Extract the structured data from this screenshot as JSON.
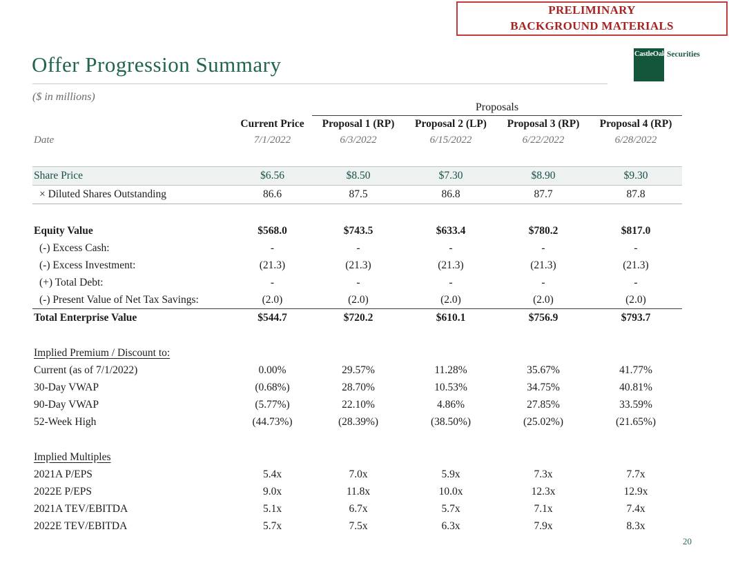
{
  "page": {
    "stamp_line1": "PRELIMINARY",
    "stamp_line2": "BACKGROUND MATERIALS",
    "logo_name": "CastleOak",
    "logo_suffix": "Securities",
    "title": "Offer Progression Summary",
    "subtitle": "($ in millions)",
    "page_number": "20"
  },
  "colors": {
    "title_green": "#216451",
    "logo_green": "#14563b",
    "stamp_red": "#a82222",
    "stamp_border_red": "#c23b3b",
    "share_price_teal": "#174f4a",
    "highlight_band": "#edf1ef",
    "date_gray": "#6f6f6f"
  },
  "table": {
    "group_header": "Proposals",
    "date_label": "Date",
    "columns": [
      "Current Price",
      "Proposal 1 (RP)",
      "Proposal 2 (LP)",
      "Proposal 3 (RP)",
      "Proposal 4 (RP)"
    ],
    "dates": [
      "7/1/2022",
      "6/3/2022",
      "6/15/2022",
      "6/22/2022",
      "6/28/2022"
    ],
    "sections": [
      {
        "rows": [
          {
            "label": "Share Price",
            "style": "highlight",
            "values": [
              "$6.56",
              "$8.50",
              "$7.30",
              "$8.90",
              "$9.30"
            ]
          },
          {
            "label": "× Diluted Shares Outstanding",
            "style": "subline",
            "indent": true,
            "values": [
              "86.6",
              "87.5",
              "86.8",
              "87.7",
              "87.8"
            ]
          }
        ]
      },
      {
        "rows": [
          {
            "label": "Equity Value",
            "style": "bold",
            "values": [
              "$568.0",
              "$743.5",
              "$633.4",
              "$780.2",
              "$817.0"
            ]
          },
          {
            "label": "(-) Excess Cash:",
            "indent": true,
            "values": [
              "-",
              "-",
              "-",
              "-",
              "-"
            ]
          },
          {
            "label": "(-) Excess Investment:",
            "indent": true,
            "values": [
              "(21.3)",
              "(21.3)",
              "(21.3)",
              "(21.3)",
              "(21.3)"
            ]
          },
          {
            "label": "(+) Total Debt:",
            "indent": true,
            "values": [
              "-",
              "-",
              "-",
              "-",
              "-"
            ]
          },
          {
            "label": "(-) Present Value of Net Tax Savings:",
            "indent": true,
            "values": [
              "(2.0)",
              "(2.0)",
              "(2.0)",
              "(2.0)",
              "(2.0)"
            ]
          },
          {
            "label": "Total Enterprise Value",
            "style": "bold total",
            "values": [
              "$544.7",
              "$720.2",
              "$610.1",
              "$756.9",
              "$793.7"
            ]
          }
        ]
      },
      {
        "heading": "Implied Premium / Discount to:",
        "rows": [
          {
            "label": "Current (as of 7/1/2022)",
            "values": [
              "0.00%",
              "29.57%",
              "11.28%",
              "35.67%",
              "41.77%"
            ]
          },
          {
            "label": "30-Day VWAP",
            "values": [
              "(0.68%)",
              "28.70%",
              "10.53%",
              "34.75%",
              "40.81%"
            ]
          },
          {
            "label": "90-Day VWAP",
            "values": [
              "(5.77%)",
              "22.10%",
              "4.86%",
              "27.85%",
              "33.59%"
            ]
          },
          {
            "label": "52-Week High",
            "values": [
              "(44.73%)",
              "(28.39%)",
              "(38.50%)",
              "(25.02%)",
              "(21.65%)"
            ]
          }
        ]
      },
      {
        "heading": "Implied Multiples",
        "rows": [
          {
            "label": "2021A P/EPS",
            "values": [
              "5.4x",
              "7.0x",
              "5.9x",
              "7.3x",
              "7.7x"
            ]
          },
          {
            "label": "2022E P/EPS",
            "values": [
              "9.0x",
              "11.8x",
              "10.0x",
              "12.3x",
              "12.9x"
            ]
          },
          {
            "label": "2021A TEV/EBITDA",
            "values": [
              "5.1x",
              "6.7x",
              "5.7x",
              "7.1x",
              "7.4x"
            ]
          },
          {
            "label": "2022E TEV/EBITDA",
            "values": [
              "5.7x",
              "7.5x",
              "6.3x",
              "7.9x",
              "8.3x"
            ]
          }
        ]
      }
    ]
  }
}
